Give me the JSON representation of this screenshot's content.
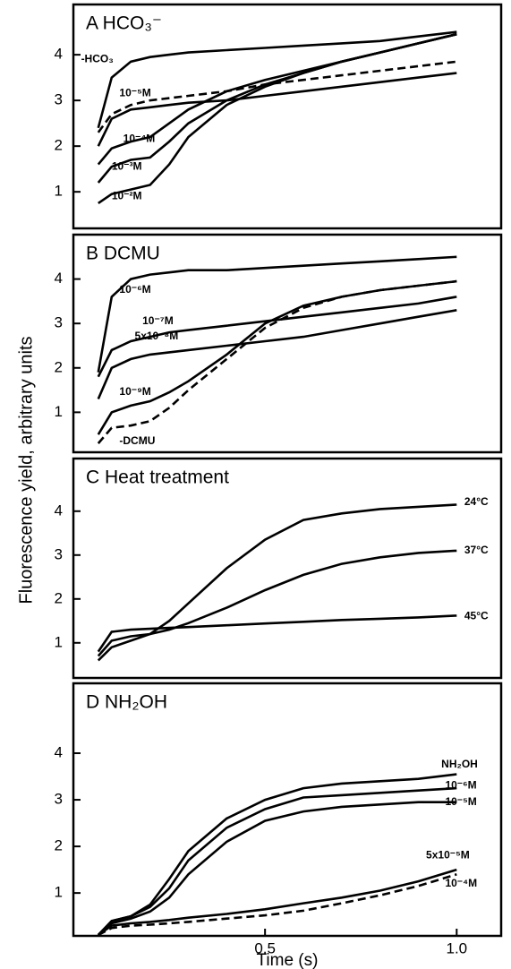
{
  "y_label": "Fluorescence yield, arbitrary units",
  "chart_data": [
    {
      "type": "line",
      "title": "A HCO₃⁻",
      "x": [
        0.065,
        0.1,
        0.15,
        0.2,
        0.25,
        0.3,
        0.4,
        0.5,
        0.6,
        0.7,
        0.8,
        0.9,
        1.0
      ],
      "xlim": [
        0,
        1.116
      ],
      "ylim": [
        0.2,
        5.1
      ],
      "yticks": [
        1,
        2,
        3,
        4
      ],
      "series": [
        {
          "name": "-HCO₃",
          "color": "#000000",
          "values": [
            2.4,
            3.5,
            3.85,
            3.95,
            4.0,
            4.05,
            4.1,
            4.15,
            4.2,
            4.25,
            4.3,
            4.4,
            4.5
          ]
        },
        {
          "color": "#000000",
          "style": "dashed",
          "values": [
            2.3,
            2.7,
            2.9,
            3.0,
            3.05,
            3.1,
            3.2,
            3.35,
            3.45,
            3.55,
            3.65,
            3.75,
            3.85
          ]
        },
        {
          "name": "10⁻⁵M",
          "color": "#000000",
          "values": [
            2.0,
            2.6,
            2.8,
            2.85,
            2.9,
            2.95,
            3.0,
            3.1,
            3.2,
            3.3,
            3.4,
            3.5,
            3.6
          ]
        },
        {
          "name": "10⁻⁴M",
          "color": "#000000",
          "values": [
            1.6,
            1.95,
            2.1,
            2.2,
            2.5,
            2.8,
            3.2,
            3.45,
            3.65,
            3.85,
            4.05,
            4.25,
            4.45
          ]
        },
        {
          "name": "10⁻³M",
          "color": "#000000",
          "values": [
            1.2,
            1.55,
            1.7,
            1.75,
            2.1,
            2.5,
            3.0,
            3.35,
            3.6,
            3.85,
            4.05,
            4.25,
            4.45
          ]
        },
        {
          "name": "10⁻²M",
          "color": "#000000",
          "values": [
            0.75,
            0.95,
            1.05,
            1.15,
            1.6,
            2.2,
            2.9,
            3.3,
            3.6,
            3.85,
            4.05,
            4.25,
            4.45
          ]
        }
      ]
    },
    {
      "type": "line",
      "title": "B DCMU",
      "x": [
        0.065,
        0.1,
        0.15,
        0.2,
        0.25,
        0.3,
        0.4,
        0.5,
        0.6,
        0.7,
        0.8,
        0.9,
        1.0
      ],
      "xlim": [
        0,
        1.116
      ],
      "ylim": [
        0.1,
        5.0
      ],
      "yticks": [
        1,
        2,
        3,
        4
      ],
      "series": [
        {
          "name": "10⁻⁶M",
          "color": "#000000",
          "values": [
            1.9,
            3.6,
            4.0,
            4.1,
            4.15,
            4.2,
            4.2,
            4.25,
            4.3,
            4.35,
            4.4,
            4.45,
            4.5
          ]
        },
        {
          "name": "10⁻⁷M",
          "color": "#000000",
          "values": [
            1.8,
            2.4,
            2.6,
            2.7,
            2.8,
            2.85,
            2.95,
            3.05,
            3.15,
            3.25,
            3.35,
            3.45,
            3.6
          ]
        },
        {
          "name": "5x10⁻⁸M",
          "color": "#000000",
          "values": [
            1.3,
            2.0,
            2.2,
            2.3,
            2.35,
            2.4,
            2.5,
            2.6,
            2.7,
            2.85,
            3.0,
            3.15,
            3.3
          ]
        },
        {
          "name": "10⁻⁹M",
          "color": "#000000",
          "values": [
            0.5,
            1.0,
            1.15,
            1.25,
            1.45,
            1.7,
            2.3,
            3.0,
            3.4,
            3.6,
            3.75,
            3.85,
            3.95
          ]
        },
        {
          "name": "-DCMU",
          "color": "#000000",
          "style": "dashed",
          "values": [
            0.3,
            0.65,
            0.7,
            0.8,
            1.1,
            1.5,
            2.2,
            2.9,
            3.35,
            3.6,
            3.75,
            3.85,
            3.95
          ]
        }
      ]
    },
    {
      "type": "line",
      "title": "C Heat treatment",
      "x": [
        0.065,
        0.1,
        0.15,
        0.2,
        0.25,
        0.3,
        0.4,
        0.5,
        0.6,
        0.7,
        0.8,
        0.9,
        1.0
      ],
      "xlim": [
        0,
        1.116
      ],
      "ylim": [
        0.2,
        5.2
      ],
      "yticks": [
        1,
        2,
        3,
        4
      ],
      "series": [
        {
          "name": "24°C",
          "color": "#000000",
          "values": [
            0.6,
            0.9,
            1.05,
            1.2,
            1.5,
            1.9,
            2.7,
            3.35,
            3.8,
            3.95,
            4.05,
            4.1,
            4.15
          ]
        },
        {
          "name": "37°C",
          "color": "#000000",
          "values": [
            0.7,
            1.05,
            1.15,
            1.2,
            1.3,
            1.45,
            1.8,
            2.2,
            2.55,
            2.8,
            2.95,
            3.05,
            3.1
          ]
        },
        {
          "name": "45°C",
          "color": "#000000",
          "values": [
            0.8,
            1.25,
            1.3,
            1.32,
            1.34,
            1.36,
            1.4,
            1.44,
            1.48,
            1.52,
            1.55,
            1.58,
            1.62
          ]
        }
      ]
    },
    {
      "type": "line",
      "title": "D NH₂OH",
      "x_label": "Time (s)",
      "x": [
        0.065,
        0.1,
        0.15,
        0.2,
        0.25,
        0.3,
        0.4,
        0.5,
        0.6,
        0.7,
        0.8,
        0.9,
        1.0
      ],
      "xlim": [
        0,
        1.116
      ],
      "ylim": [
        0.08,
        5.5
      ],
      "yticks": [
        1,
        2,
        3,
        4
      ],
      "xticks": [
        0.5,
        {
          "value": 1,
          "label": "1.0"
        }
      ],
      "series": [
        {
          "name": "NH₂OH",
          "color": "#000000",
          "values": [
            0.1,
            0.4,
            0.5,
            0.75,
            1.3,
            1.9,
            2.6,
            3.0,
            3.25,
            3.35,
            3.4,
            3.45,
            3.55
          ]
        },
        {
          "name": "10⁻⁶M",
          "color": "#000000",
          "values": [
            0.1,
            0.4,
            0.5,
            0.7,
            1.1,
            1.7,
            2.4,
            2.8,
            3.05,
            3.1,
            3.15,
            3.2,
            3.25
          ]
        },
        {
          "name": "10⁻⁵M",
          "color": "#000000",
          "values": [
            0.1,
            0.35,
            0.45,
            0.6,
            0.9,
            1.4,
            2.1,
            2.55,
            2.75,
            2.85,
            2.9,
            2.95,
            2.95
          ]
        },
        {
          "name": "5x10⁻⁵M",
          "color": "#000000",
          "values": [
            0.1,
            0.3,
            0.35,
            0.38,
            0.42,
            0.47,
            0.55,
            0.65,
            0.78,
            0.9,
            1.05,
            1.25,
            1.5
          ]
        },
        {
          "name": "10⁻⁴M",
          "color": "#000000",
          "style": "dashed",
          "values": [
            0.1,
            0.25,
            0.3,
            0.32,
            0.35,
            0.38,
            0.45,
            0.52,
            0.62,
            0.78,
            0.95,
            1.15,
            1.4
          ]
        }
      ]
    }
  ]
}
